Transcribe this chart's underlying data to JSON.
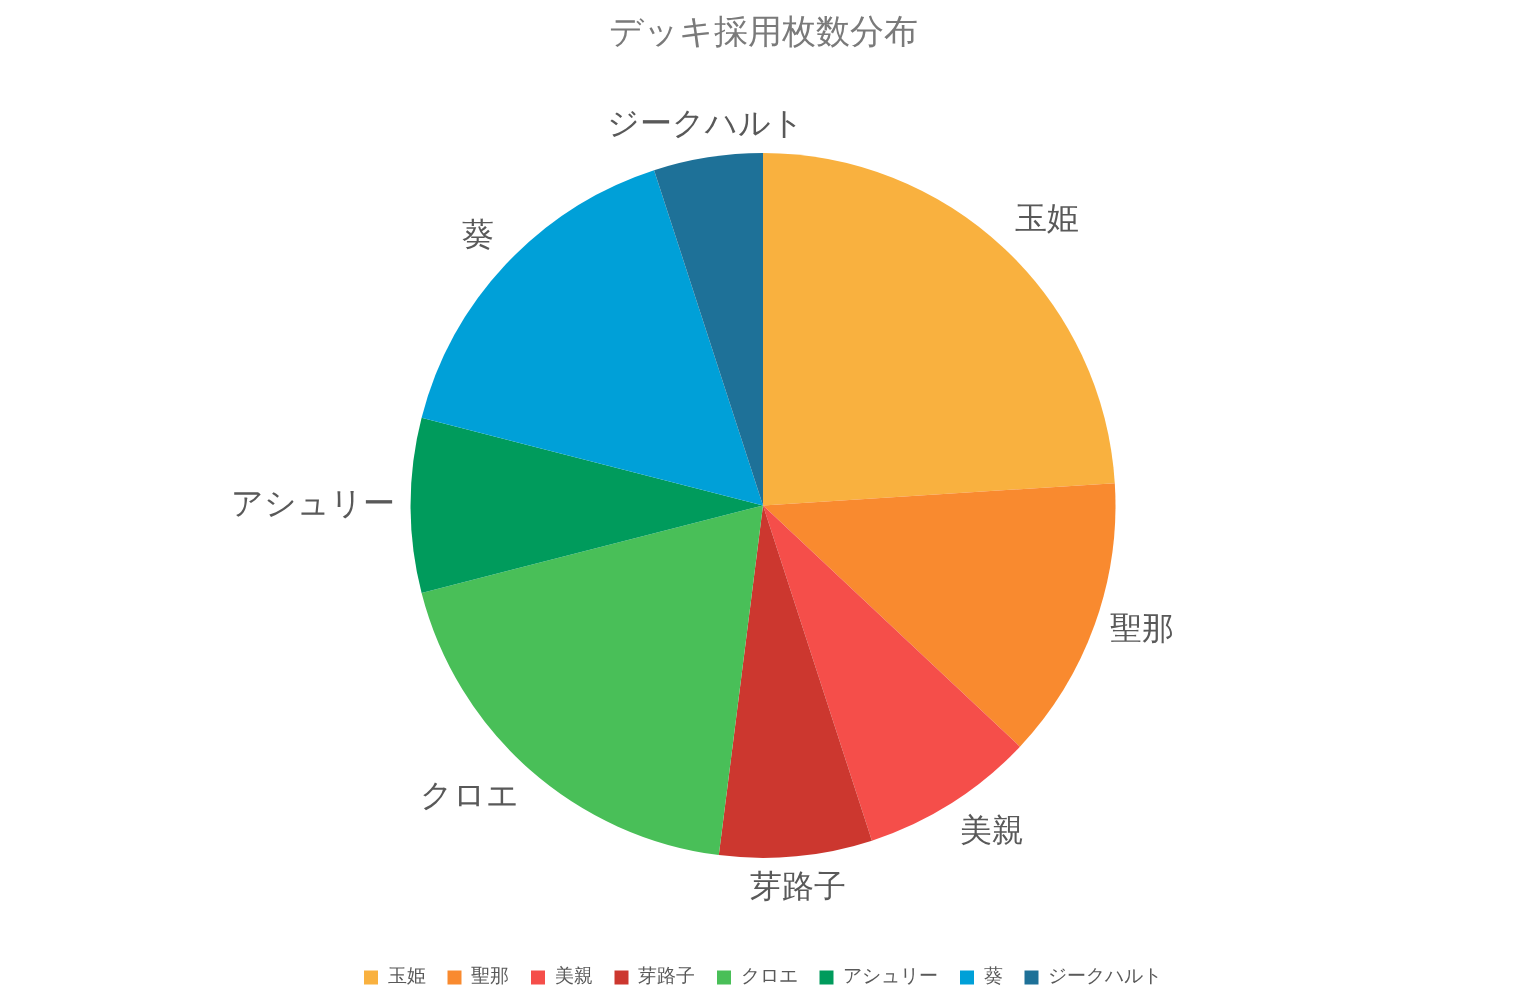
{
  "chart_data": {
    "type": "pie",
    "title": "デッキ採用枚数分布",
    "categories": [
      "玉姫",
      "聖那",
      "美親",
      "芽路子",
      "クロエ",
      "アシュリー",
      "葵",
      "ジークハルト"
    ],
    "values": [
      24,
      13,
      8,
      7,
      19,
      8,
      16,
      5
    ],
    "colors": [
      "#f9b13f",
      "#f98a2f",
      "#f54e4a",
      "#cc372f",
      "#49bf58",
      "#009b5c",
      "#00a0d8",
      "#1e7198"
    ],
    "legend": "bottom"
  }
}
